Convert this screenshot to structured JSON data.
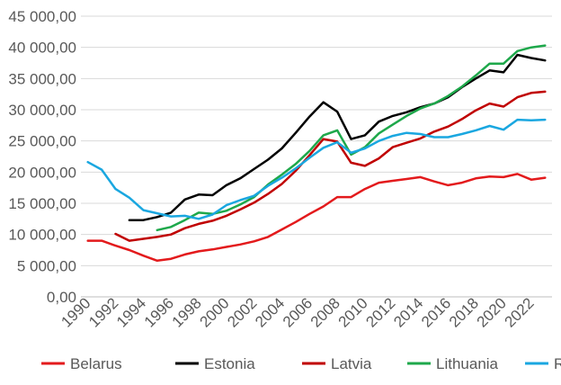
{
  "chart_data": {
    "type": "line",
    "title": "",
    "xlabel": "",
    "ylabel": "",
    "ylim": [
      0,
      45000
    ],
    "y_ticks": [
      {
        "value": 0,
        "label": "0,00"
      },
      {
        "value": 5000,
        "label": "5 000,00"
      },
      {
        "value": 10000,
        "label": "10 000,00"
      },
      {
        "value": 15000,
        "label": "15 000,00"
      },
      {
        "value": 20000,
        "label": "20 000,00"
      },
      {
        "value": 25000,
        "label": "25 000,00"
      },
      {
        "value": 30000,
        "label": "30 000,00"
      },
      {
        "value": 35000,
        "label": "35 000,00"
      },
      {
        "value": 40000,
        "label": "40 000,00"
      },
      {
        "value": 45000,
        "label": "45 000,00"
      }
    ],
    "x_ticks": [
      "1990",
      "1992",
      "1994",
      "1996",
      "1998",
      "2000",
      "2002",
      "2004",
      "2006",
      "2008",
      "2010",
      "2012",
      "2014",
      "2016",
      "2018",
      "2020",
      "2022"
    ],
    "grid": true,
    "legend": "bottom",
    "x": [
      1990,
      1991,
      1992,
      1993,
      1994,
      1995,
      1996,
      1997,
      1998,
      1999,
      2000,
      2001,
      2002,
      2003,
      2004,
      2005,
      2006,
      2007,
      2008,
      2009,
      2010,
      2011,
      2012,
      2013,
      2014,
      2015,
      2016,
      2017,
      2018,
      2019,
      2020,
      2021,
      2022,
      2023
    ],
    "series": [
      {
        "name": "Belarus",
        "color": "#e31a1c",
        "values": [
          9000,
          9000,
          8200,
          7500,
          6600,
          5800,
          6100,
          6800,
          7300,
          7600,
          8000,
          8400,
          8900,
          9600,
          10800,
          12000,
          13300,
          14500,
          16000,
          16000,
          17300,
          18300,
          18600,
          18900,
          19200,
          18500,
          17900,
          18300,
          19000,
          19300,
          19200,
          19700,
          18800,
          19100
        ]
      },
      {
        "name": "Estonia",
        "color": "#000000",
        "values": [
          null,
          null,
          null,
          12300,
          12300,
          12800,
          13500,
          15600,
          16400,
          16300,
          17900,
          19000,
          20500,
          22000,
          23800,
          26300,
          28900,
          31200,
          29700,
          25300,
          25900,
          28100,
          29000,
          29600,
          30400,
          31000,
          32000,
          33600,
          35000,
          36300,
          36000,
          38800,
          38300,
          37900
        ]
      },
      {
        "name": "Latvia",
        "color": "#c00000",
        "values": [
          null,
          null,
          10100,
          9000,
          9300,
          9600,
          10000,
          11000,
          11700,
          12200,
          13000,
          14000,
          15100,
          16500,
          18100,
          20200,
          22700,
          25300,
          24900,
          21500,
          21000,
          22200,
          24000,
          24700,
          25400,
          26500,
          27300,
          28500,
          29900,
          31000,
          30500,
          32000,
          32700,
          32900
        ]
      },
      {
        "name": "Lithuania",
        "color": "#1ea84b",
        "values": [
          null,
          null,
          null,
          null,
          null,
          10700,
          11200,
          12300,
          13500,
          13300,
          13800,
          14800,
          16000,
          18000,
          19600,
          21300,
          23400,
          25900,
          26700,
          22800,
          24000,
          26200,
          27600,
          29000,
          30200,
          31000,
          32200,
          33700,
          35500,
          37400,
          37400,
          39400,
          40000,
          40300
        ]
      },
      {
        "name": "Russia",
        "color": "#1aa7e0",
        "values": [
          21600,
          20400,
          17300,
          15900,
          13900,
          13400,
          12900,
          13000,
          12500,
          13200,
          14700,
          15500,
          16200,
          17800,
          19100,
          20600,
          22300,
          23900,
          24800,
          23100,
          23800,
          25000,
          25800,
          26300,
          26100,
          25600,
          25600,
          26100,
          26700,
          27400,
          26800,
          28400,
          28300,
          28400
        ]
      }
    ]
  }
}
